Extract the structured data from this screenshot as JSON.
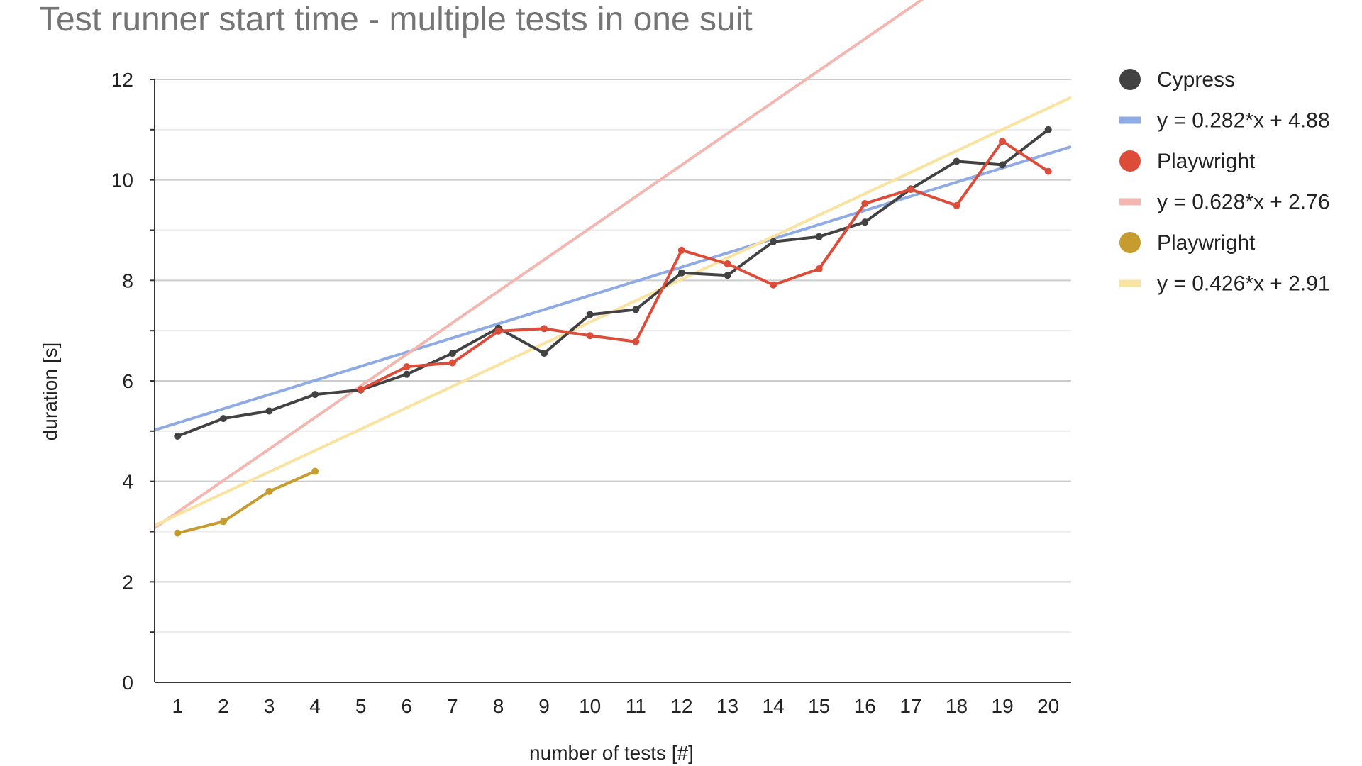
{
  "chart_data": {
    "type": "line",
    "title": "Test runner start time - multiple tests in one suit",
    "xlabel": "number of tests [#]",
    "ylabel": "duration [s]",
    "categories": [
      1,
      2,
      3,
      4,
      5,
      6,
      7,
      8,
      9,
      10,
      11,
      12,
      13,
      14,
      15,
      16,
      17,
      18,
      19,
      20
    ],
    "ylim": [
      0,
      12
    ],
    "yticks": [
      0,
      2,
      4,
      6,
      8,
      10,
      12
    ],
    "grid": true,
    "legend_position": "right",
    "series": [
      {
        "name": "Cypress",
        "color": "#424242",
        "x": [
          1,
          2,
          3,
          4,
          5,
          6,
          7,
          8,
          9,
          10,
          11,
          12,
          13,
          14,
          15,
          16,
          17,
          18,
          19,
          20
        ],
        "values": [
          4.9,
          5.25,
          5.4,
          5.73,
          5.82,
          6.13,
          6.55,
          7.05,
          6.55,
          7.32,
          7.42,
          8.15,
          8.1,
          8.77,
          8.87,
          9.16,
          9.82,
          10.37,
          10.3,
          11.0
        ]
      },
      {
        "name": "Playwright",
        "color": "#dd4b39",
        "x": [
          5,
          6,
          7,
          8,
          9,
          10,
          11,
          12,
          13,
          14,
          15,
          16,
          17,
          18,
          19,
          20
        ],
        "values": [
          5.83,
          6.28,
          6.36,
          6.99,
          7.04,
          6.9,
          6.78,
          8.6,
          8.33,
          7.91,
          8.23,
          9.53,
          9.81,
          9.49,
          10.77,
          10.17
        ]
      },
      {
        "name": "Playwright",
        "color": "#c69c2e",
        "x": [
          1,
          2,
          3,
          4
        ],
        "values": [
          2.97,
          3.2,
          3.8,
          4.2
        ]
      }
    ],
    "trendlines": [
      {
        "label": "y = 0.282*x + 4.88",
        "slope": 0.282,
        "intercept": 4.88,
        "color": "#8fabe6"
      },
      {
        "label": "y = 0.628*x + 2.76",
        "slope": 0.628,
        "intercept": 2.76,
        "color": "#f4b6b0"
      },
      {
        "label": "y = 0.426*x + 2.91",
        "slope": 0.426,
        "intercept": 2.91,
        "color": "#fae39e"
      }
    ],
    "legend": [
      {
        "label": "Cypress",
        "kind": "dot",
        "color": "#424242"
      },
      {
        "label": "y = 0.282*x + 4.88",
        "kind": "line",
        "color": "#8fabe6"
      },
      {
        "label": "Playwright",
        "kind": "dot",
        "color": "#dd4b39"
      },
      {
        "label": "y = 0.628*x + 2.76",
        "kind": "line",
        "color": "#f4b6b0"
      },
      {
        "label": "Playwright",
        "kind": "dot",
        "color": "#c69c2e"
      },
      {
        "label": "y = 0.426*x + 2.91",
        "kind": "line",
        "color": "#fae39e"
      }
    ]
  }
}
